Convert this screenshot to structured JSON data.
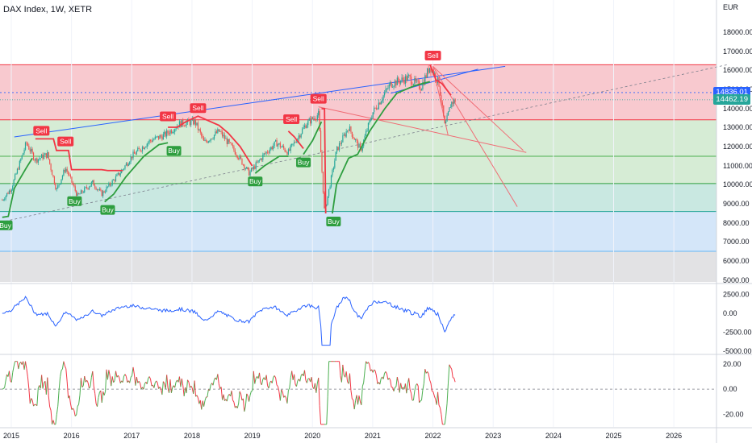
{
  "header": {
    "title": "DAX Index, 1W, XETR"
  },
  "currency_label": "EUR",
  "price_tags": [
    {
      "label": "14836.01",
      "color": "#2962ff",
      "price": 14836.01
    },
    {
      "label": "14462.19",
      "color": "#26a69a",
      "price": 14462.19
    }
  ],
  "colors": {
    "up": "#26a69a",
    "down": "#ef5350",
    "support": "#2e9e3f",
    "resistance": "#f23645",
    "zone_red": "#f8c9cf",
    "zone_green": "#d6ecd5",
    "zone_teal": "#c9e8e1",
    "zone_blue": "#d4e6f9",
    "zone_gray": "#e2e2e4",
    "osc_line": "#2962ff",
    "trend_blue": "#2962ff",
    "trend_red": "#f06b74"
  },
  "chart_data": [
    {
      "type": "candlestick",
      "title": "DAX Index, 1W, XETR",
      "x": [
        "2015",
        "2016",
        "2017",
        "2018",
        "2019",
        "2020",
        "2021",
        "2022",
        "2023",
        "2024",
        "2025",
        "2026"
      ],
      "y_ticks": [
        "18000.00",
        "17000.00",
        "16000.00",
        "15000.00",
        "14000.00",
        "13000.00",
        "12000.00",
        "11000.00",
        "10000.00",
        "9000.00",
        "8000.00",
        "7000.00",
        "6000.00",
        "5000.00"
      ],
      "ylim": [
        4900,
        19000
      ],
      "zones": [
        {
          "from": 13400,
          "to": 16290,
          "color": "zone_red"
        },
        {
          "from": 11500,
          "to": 13400,
          "color": "zone_green"
        },
        {
          "from": 10050,
          "to": 11500,
          "color": "zone_green"
        },
        {
          "from": 8600,
          "to": 10050,
          "color": "zone_teal"
        },
        {
          "from": 6500,
          "to": 8600,
          "color": "zone_blue"
        },
        {
          "from": 4900,
          "to": 6500,
          "color": "zone_gray"
        }
      ],
      "signals": [
        {
          "label": "Sell",
          "date": 2015.5,
          "price": 12400
        },
        {
          "label": "Sell",
          "date": 2015.9,
          "price": 11850
        },
        {
          "label": "Sell",
          "date": 2017.6,
          "price": 13150
        },
        {
          "label": "Sell",
          "date": 2018.1,
          "price": 13600
        },
        {
          "label": "Sell",
          "date": 2019.65,
          "price": 13000
        },
        {
          "label": "Sell",
          "date": 2020.1,
          "price": 14100
        },
        {
          "label": "Sell",
          "date": 2022.0,
          "price": 16350
        },
        {
          "label": "Buy",
          "date": 2014.9,
          "price": 8300
        },
        {
          "label": "Buy",
          "date": 2016.05,
          "price": 9550
        },
        {
          "label": "Buy",
          "date": 2016.6,
          "price": 9100
        },
        {
          "label": "Buy",
          "date": 2017.7,
          "price": 12200
        },
        {
          "label": "Buy",
          "date": 2019.05,
          "price": 10600
        },
        {
          "label": "Buy",
          "date": 2019.85,
          "price": 11600
        },
        {
          "label": "Buy",
          "date": 2020.35,
          "price": 8500
        }
      ]
    },
    {
      "type": "line",
      "name": "oscillator",
      "y_ticks": [
        "2500.00",
        "0.00",
        "-2500.00",
        "-5000.00"
      ],
      "ylim": [
        -5200,
        3500
      ]
    },
    {
      "type": "line",
      "name": "momentum",
      "y_ticks": [
        "20.00",
        "0.00",
        "-20.00"
      ],
      "ylim": [
        -30,
        25
      ]
    }
  ]
}
